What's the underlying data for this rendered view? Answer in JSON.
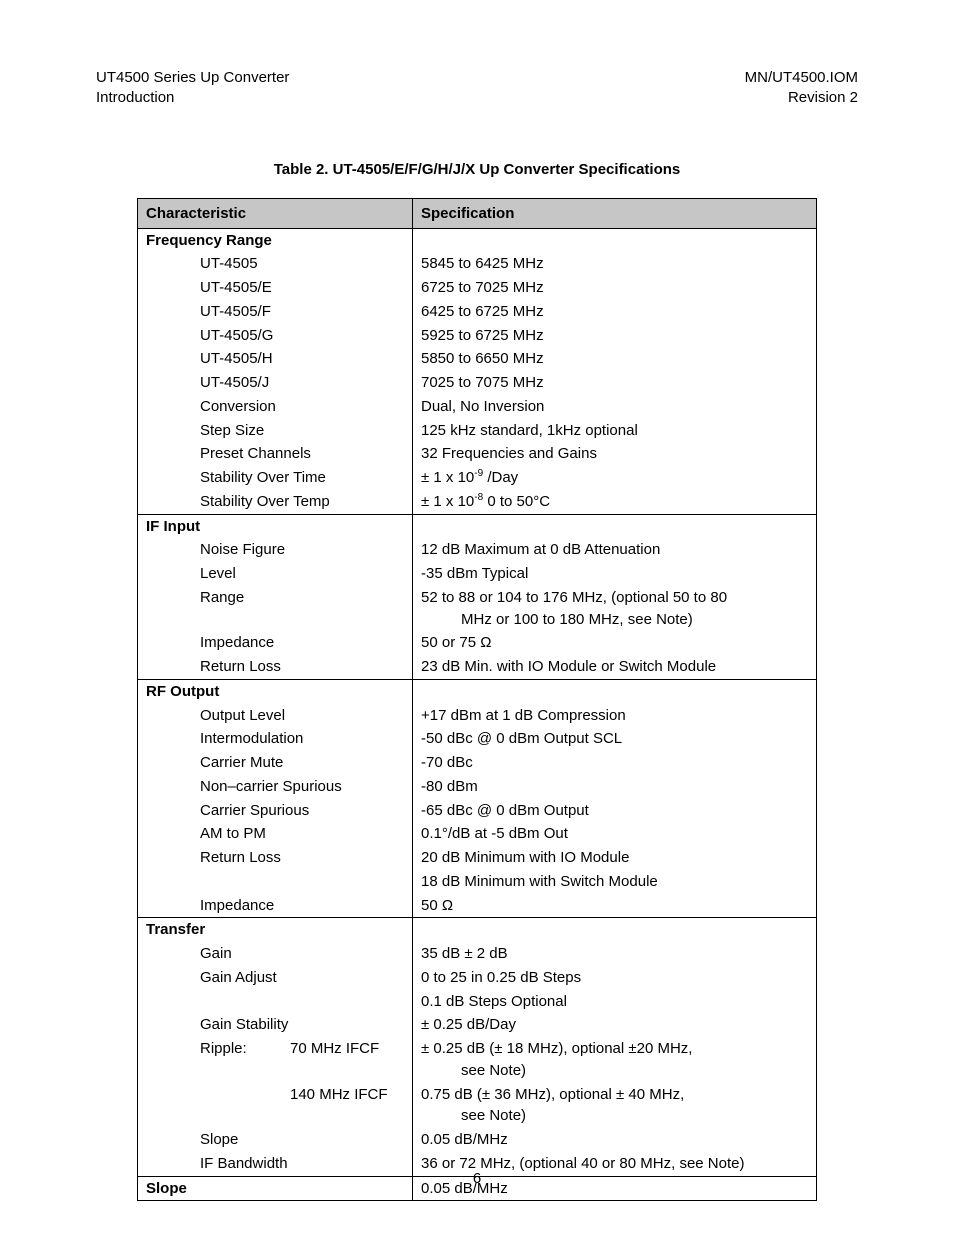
{
  "header": {
    "left1": "UT4500 Series Up Converter",
    "left2": "Introduction",
    "right1": "MN/UT4500.IOM",
    "right2": "Revision 2"
  },
  "table": {
    "title": "Table 2.  UT-4505/E/F/G/H/J/X Up Converter Specifications",
    "col1": "Characteristic",
    "col2": "Specification",
    "sections": [
      {
        "name": "Frequency Range",
        "rows": [
          {
            "c": "UT-4505",
            "s": "5845 to 6425 MHz"
          },
          {
            "c": "UT-4505/E",
            "s": "6725 to 7025 MHz"
          },
          {
            "c": "UT-4505/F",
            "s": "6425 to 6725 MHz"
          },
          {
            "c": "UT-4505/G",
            "s": "5925 to 6725 MHz"
          },
          {
            "c": "UT-4505/H",
            "s": "5850 to 6650 MHz"
          },
          {
            "c": "UT-4505/J",
            "s": "7025 to 7075 MHz"
          },
          {
            "c": "Conversion",
            "s": "Dual, No Inversion"
          },
          {
            "c": "Step Size",
            "s": "125 kHz standard, 1kHz optional"
          },
          {
            "c": "Preset Channels",
            "s": "32 Frequencies and Gains"
          },
          {
            "c": "Stability Over Time",
            "s_html": "± 1 x 10<sup>-9</sup> /Day"
          },
          {
            "c": "Stability Over Temp",
            "s_html": "± 1 x 10<sup>-8</sup> 0 to 50°C"
          }
        ]
      },
      {
        "name": "IF Input",
        "rows": [
          {
            "c": "Noise Figure",
            "s": "12 dB Maximum at 0 dB Attenuation"
          },
          {
            "c": "Level",
            "s": "-35 dBm Typical"
          },
          {
            "c": "Range",
            "s": "52 to 88 or 104 to 176 MHz, (optional 50 to 80",
            "s2": "MHz or 100 to 180 MHz, see Note)"
          },
          {
            "c": "Impedance",
            "s": "50 or 75 Ω"
          },
          {
            "c": "Return Loss",
            "s": "23 dB Min. with IO Module or Switch Module"
          }
        ]
      },
      {
        "name": "RF Output",
        "rows": [
          {
            "c": "Output Level",
            "s": "+17 dBm at 1 dB Compression"
          },
          {
            "c": "Intermodulation",
            "s": "-50 dBc @ 0 dBm Output SCL"
          },
          {
            "c": "Carrier Mute",
            "s": "-70 dBc"
          },
          {
            "c": "Non–carrier Spurious",
            "s": "-80 dBm"
          },
          {
            "c": "Carrier Spurious",
            "s": "-65 dBc @ 0 dBm Output"
          },
          {
            "c": "AM to PM",
            "s": "0.1°/dB at -5 dBm Out"
          },
          {
            "c": "Return Loss",
            "s": "20 dB Minimum with IO Module"
          },
          {
            "c": "",
            "s": "18 dB Minimum with Switch Module"
          },
          {
            "c": "Impedance",
            "s": "50 Ω"
          }
        ]
      },
      {
        "name": "Transfer",
        "rows": [
          {
            "c": "Gain",
            "s": "35 dB ± 2 dB"
          },
          {
            "c": "Gain Adjust",
            "s": "0 to 25 in 0.25 dB Steps"
          },
          {
            "c": "",
            "s": "0.1 dB Steps Optional"
          },
          {
            "c": "Gain Stability",
            "s": "± 0.25 dB/Day"
          },
          {
            "ripple_label": "Ripple:",
            "ripple_val": "70 MHz IFCF",
            "s": "± 0.25 dB (± 18 MHz), optional ±20 MHz,",
            "s2": "see Note)"
          },
          {
            "ripple_label": "",
            "ripple_val": "140 MHz IFCF",
            "s": "0.75 dB (± 36 MHz), optional ± 40 MHz,",
            "s2": "see Note)"
          },
          {
            "c": "Slope",
            "s": "0.05 dB/MHz"
          },
          {
            "c": "IF Bandwidth",
            "s": "36 or 72 MHz, (optional 40 or 80 MHz, see Note)"
          }
        ]
      },
      {
        "name": "Slope",
        "flat": true,
        "s": "0.05 dB/MHz"
      }
    ]
  },
  "page_number": "6"
}
